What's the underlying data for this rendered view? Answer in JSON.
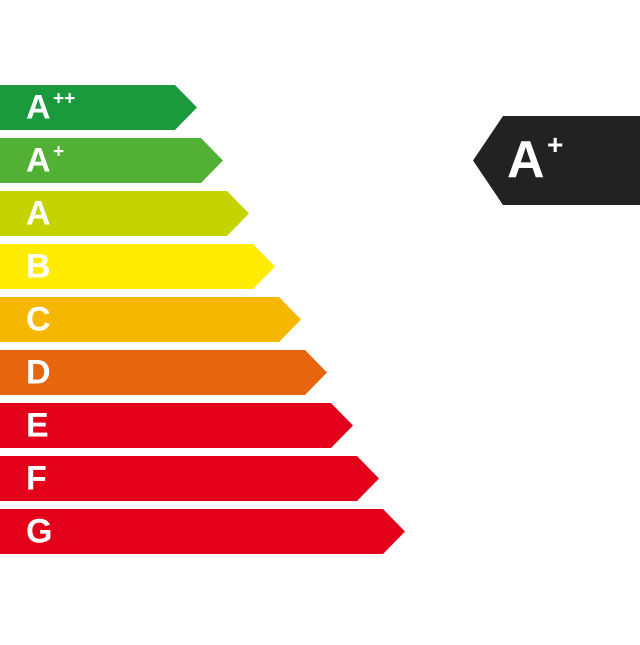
{
  "classes": [
    {
      "letter": "A",
      "sup": "++",
      "color": "#1a9a3c"
    },
    {
      "letter": "A",
      "sup": "+",
      "color": "#52b035"
    },
    {
      "letter": "A",
      "color": "#c5d300"
    },
    {
      "letter": "B",
      "color": "#ffec00"
    },
    {
      "letter": "C",
      "color": "#f5b700"
    },
    {
      "letter": "D",
      "color": "#e6650d"
    },
    {
      "letter": "E",
      "color": "#e2001a"
    },
    {
      "letter": "F",
      "color": "#e2001a"
    },
    {
      "letter": "G",
      "color": "#e2001a"
    }
  ],
  "rating": {
    "letter": "A",
    "sup": "+",
    "color": "#222222"
  }
}
